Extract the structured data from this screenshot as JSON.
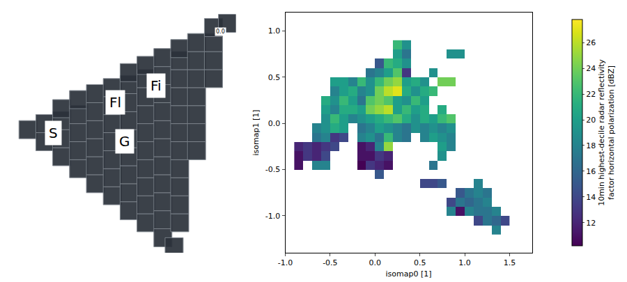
{
  "chart_data": [
    {
      "type": "scatter",
      "tick_labels": false,
      "marker": "square",
      "color": "#2b313a",
      "xlim": [
        0,
        400
      ],
      "ylim": [
        0,
        400
      ],
      "x": [
        30,
        60,
        60,
        90,
        90,
        90,
        90,
        120,
        120,
        120,
        120,
        120,
        150,
        150,
        150,
        150,
        150,
        150,
        180,
        180,
        180,
        180,
        180,
        180,
        180,
        210,
        210,
        210,
        210,
        210,
        210,
        210,
        210,
        210,
        240,
        240,
        240,
        240,
        240,
        240,
        240,
        240,
        240,
        240,
        270,
        270,
        270,
        270,
        270,
        270,
        270,
        270,
        270,
        270,
        270,
        300,
        300,
        300,
        300,
        300,
        300,
        300,
        300,
        300,
        300,
        300,
        330,
        330,
        330,
        330,
        330,
        330,
        330,
        360,
        360,
        360,
        360,
        385,
        290
      ],
      "y": [
        205,
        185,
        215,
        160,
        190,
        220,
        240,
        140,
        170,
        200,
        230,
        255,
        115,
        145,
        175,
        205,
        235,
        265,
        95,
        125,
        155,
        185,
        215,
        245,
        275,
        70,
        100,
        130,
        160,
        190,
        220,
        250,
        280,
        300,
        50,
        80,
        110,
        140,
        170,
        200,
        230,
        260,
        290,
        312,
        25,
        55,
        85,
        115,
        145,
        175,
        205,
        235,
        265,
        295,
        325,
        50,
        80,
        110,
        140,
        170,
        200,
        230,
        260,
        290,
        320,
        340,
        170,
        200,
        230,
        260,
        290,
        320,
        350,
        290,
        320,
        350,
        375,
        382,
        10
      ],
      "annotations": [
        {
          "text": "S",
          "x": 75,
          "y": 200
        },
        {
          "text": "Fl",
          "x": 185,
          "y": 250
        },
        {
          "text": "Fi",
          "x": 258,
          "y": 278
        },
        {
          "text": "G",
          "x": 202,
          "y": 185
        },
        {
          "text": "0.0",
          "x": 372,
          "y": 368
        }
      ]
    },
    {
      "type": "heatmap",
      "x_label": "isomap0 [1]",
      "y_label": "isomap1 [1]",
      "color": "Viridis",
      "xlim": [
        -1.0,
        1.75
      ],
      "ylim": [
        -1.4,
        1.2
      ],
      "xticks": [
        {
          "value": -1,
          "label": "-1.0"
        },
        -0.5,
        {
          "value": 0,
          "label": "0.0"
        },
        0.5,
        {
          "value": 1,
          "label": "1.0"
        },
        1.5
      ],
      "yticks": [
        {
          "value": -1,
          "label": "-1.0"
        },
        -0.5,
        {
          "value": 0,
          "label": "0.0"
        },
        0.5,
        {
          "value": 1,
          "label": "1.0"
        }
      ],
      "x": [
        -0.85,
        -0.75,
        -0.65,
        -0.55,
        -0.45,
        -0.35,
        -0.25,
        -0.15,
        -0.05,
        0.05,
        0.15,
        0.25,
        0.35,
        0.45,
        0.55,
        0.65,
        0.75,
        0.85,
        0.95,
        1.05,
        1.15,
        1.25,
        1.35,
        1.45
      ],
      "y": [
        -1.15,
        -1.05,
        -0.95,
        -0.85,
        -0.75,
        -0.65,
        -0.55,
        -0.45,
        -0.35,
        -0.25,
        -0.15,
        -0.05,
        0.05,
        0.15,
        0.25,
        0.35,
        0.45,
        0.55,
        0.65,
        0.75,
        0.85
      ],
      "z": [
        [
          null,
          null,
          null,
          null,
          null,
          null,
          null,
          null,
          null,
          null,
          null,
          null,
          null,
          null,
          null,
          null,
          null,
          null,
          null,
          null,
          null,
          null,
          18,
          null
        ],
        [
          null,
          null,
          null,
          null,
          null,
          null,
          null,
          null,
          null,
          null,
          null,
          null,
          null,
          null,
          null,
          null,
          null,
          null,
          null,
          null,
          14,
          17,
          16,
          14
        ],
        [
          null,
          null,
          null,
          null,
          null,
          null,
          null,
          null,
          null,
          null,
          null,
          null,
          null,
          null,
          null,
          null,
          null,
          18,
          11,
          18,
          17,
          17,
          18,
          null
        ],
        [
          null,
          null,
          null,
          null,
          null,
          null,
          null,
          null,
          null,
          null,
          null,
          null,
          null,
          null,
          null,
          null,
          null,
          14,
          17,
          16,
          17,
          18,
          null,
          null
        ],
        [
          null,
          null,
          null,
          null,
          null,
          null,
          null,
          null,
          null,
          null,
          null,
          null,
          null,
          null,
          null,
          null,
          null,
          null,
          15,
          17,
          18,
          17,
          null,
          null
        ],
        [
          null,
          null,
          null,
          null,
          null,
          null,
          null,
          null,
          null,
          null,
          null,
          null,
          null,
          null,
          14,
          14,
          15,
          null,
          null,
          null,
          18,
          null,
          null,
          null
        ],
        [
          null,
          null,
          null,
          null,
          null,
          null,
          null,
          null,
          null,
          15,
          null,
          null,
          null,
          null,
          null,
          null,
          null,
          null,
          null,
          null,
          null,
          null,
          null,
          null
        ],
        [
          11,
          null,
          18,
          18,
          null,
          null,
          null,
          10,
          13,
          12,
          11,
          null,
          null,
          null,
          null,
          17,
          null,
          null,
          null,
          null,
          null,
          null,
          null,
          null
        ],
        [
          11,
          13,
          12,
          14,
          null,
          null,
          null,
          11,
          11,
          13,
          12,
          null,
          null,
          null,
          null,
          null,
          19,
          null,
          null,
          null,
          null,
          null,
          null,
          null
        ],
        [
          12,
          13,
          12,
          13,
          14,
          null,
          null,
          11,
          12,
          18,
          25,
          null,
          null,
          null,
          null,
          null,
          20,
          18,
          null,
          null,
          null,
          null,
          null,
          null
        ],
        [
          null,
          null,
          17,
          18,
          13,
          14,
          null,
          18,
          19,
          17,
          22,
          18,
          17,
          null,
          18,
          20,
          19,
          18,
          null,
          null,
          null,
          null,
          null,
          null
        ],
        [
          null,
          null,
          18,
          19,
          21,
          20,
          null,
          17,
          18,
          20,
          19,
          18,
          17,
          19,
          18,
          19,
          18,
          19,
          null,
          null,
          null,
          null,
          null,
          null
        ],
        [
          null,
          null,
          null,
          19,
          22,
          20,
          18,
          19,
          20,
          21,
          22,
          23,
          21,
          19,
          21,
          20,
          22,
          23,
          null,
          null,
          null,
          null,
          null,
          null
        ],
        [
          null,
          null,
          null,
          20,
          18,
          21,
          21,
          20,
          24,
          25,
          26,
          20,
          22,
          20,
          21,
          null,
          21,
          null,
          null,
          null,
          null,
          null,
          null,
          null
        ],
        [
          null,
          null,
          null,
          21,
          19,
          22,
          20,
          17,
          23,
          24,
          23,
          20,
          19,
          22,
          20,
          null,
          null,
          null,
          null,
          null,
          null,
          null,
          null,
          null
        ],
        [
          null,
          null,
          null,
          null,
          18,
          20,
          21,
          18,
          19,
          24,
          26,
          27,
          21,
          19,
          21,
          22,
          null,
          null,
          null,
          null,
          null,
          null,
          null,
          null
        ],
        [
          null,
          null,
          null,
          null,
          20,
          20,
          18,
          22,
          19,
          22,
          24,
          25,
          20,
          21,
          19,
          null,
          24,
          24,
          null,
          null,
          null,
          null,
          null,
          null
        ],
        [
          null,
          null,
          null,
          null,
          null,
          null,
          null,
          null,
          17,
          18,
          20,
          23,
          13,
          null,
          null,
          19,
          null,
          null,
          null,
          null,
          null,
          null,
          null,
          null
        ],
        [
          null,
          null,
          null,
          null,
          null,
          null,
          null,
          null,
          null,
          15,
          22,
          21,
          19,
          null,
          null,
          null,
          null,
          null,
          null,
          null,
          null,
          null,
          null,
          null
        ],
        [
          null,
          null,
          null,
          null,
          null,
          null,
          null,
          null,
          null,
          null,
          null,
          20,
          17,
          null,
          null,
          null,
          null,
          19,
          19,
          null,
          null,
          null,
          null,
          null
        ],
        [
          null,
          null,
          null,
          null,
          null,
          null,
          null,
          null,
          null,
          null,
          null,
          22,
          19,
          null,
          null,
          null,
          null,
          null,
          null,
          null,
          null,
          null,
          null,
          null
        ]
      ],
      "colorbar": {
        "range": [
          10.2,
          27.8
        ],
        "ticks": [
          12,
          14,
          16,
          18,
          20,
          22,
          24,
          26
        ],
        "title": "10min highest-decile radar reflectivity factor horizontal polarization [dBZ]"
      }
    }
  ]
}
